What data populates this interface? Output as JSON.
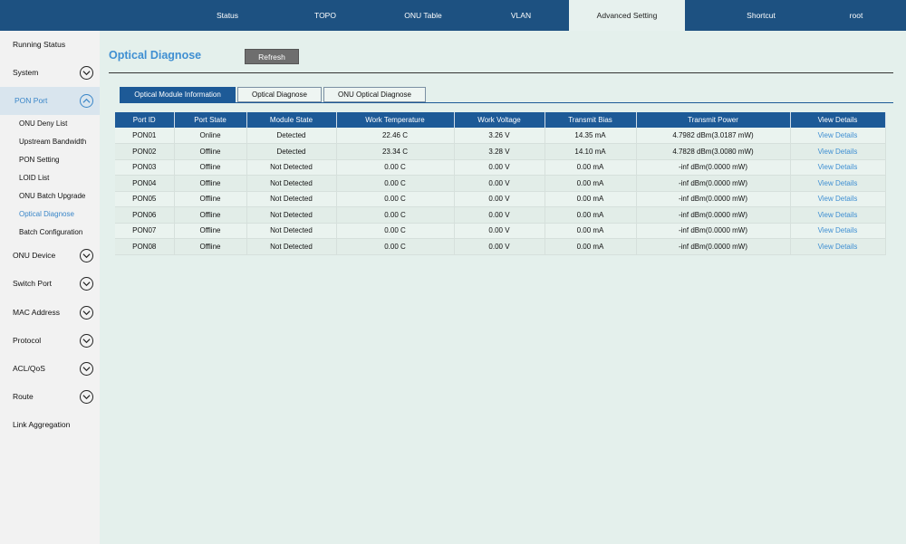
{
  "topnav": [
    {
      "label": "Status",
      "active": false
    },
    {
      "label": "TOPO",
      "active": false
    },
    {
      "label": "ONU Table",
      "active": false
    },
    {
      "label": "VLAN",
      "active": false
    },
    {
      "label": "Advanced Setting",
      "active": true
    },
    {
      "label": "Shortcut",
      "active": false
    },
    {
      "label": "root",
      "active": false
    }
  ],
  "sidebar": {
    "items": [
      {
        "label": "Running Status",
        "expandable": false
      },
      {
        "label": "System",
        "expandable": true
      },
      {
        "label": "PON Port",
        "expandable": true,
        "expanded": true
      },
      {
        "label": "ONU Device",
        "expandable": true
      },
      {
        "label": "Switch Port",
        "expandable": true
      },
      {
        "label": "MAC Address",
        "expandable": true
      },
      {
        "label": "Protocol",
        "expandable": true
      },
      {
        "label": "ACL/QoS",
        "expandable": true
      },
      {
        "label": "Route",
        "expandable": true
      },
      {
        "label": "Link Aggregation",
        "expandable": false
      }
    ],
    "pon_subitems": [
      "ONU Deny List",
      "Upstream Bandwidth",
      "PON Setting",
      "LOID List",
      "ONU Batch Upgrade",
      "Optical Diagnose",
      "Batch Configuration"
    ],
    "active_subitem": "Optical Diagnose"
  },
  "main": {
    "title": "Optical Diagnose",
    "refresh_label": "Refresh",
    "tabs": [
      {
        "label": "Optical Module Information",
        "active": true
      },
      {
        "label": "Optical Diagnose",
        "active": false
      },
      {
        "label": "ONU Optical Diagnose",
        "active": false
      }
    ],
    "table": {
      "headers": [
        "Port ID",
        "Port State",
        "Module State",
        "Work Temperature",
        "Work Voltage",
        "Transmit Bias",
        "Transmit Power",
        "View Details"
      ],
      "rows": [
        [
          "PON01",
          "Online",
          "Detected",
          "22.46 C",
          "3.26 V",
          "14.35 mA",
          "4.7982 dBm(3.0187 mW)",
          "View Details"
        ],
        [
          "PON02",
          "Offline",
          "Detected",
          "23.34 C",
          "3.28 V",
          "14.10 mA",
          "4.7828 dBm(3.0080 mW)",
          "View Details"
        ],
        [
          "PON03",
          "Offline",
          "Not Detected",
          "0.00 C",
          "0.00 V",
          "0.00 mA",
          "-inf dBm(0.0000 mW)",
          "View Details"
        ],
        [
          "PON04",
          "Offline",
          "Not Detected",
          "0.00 C",
          "0.00 V",
          "0.00 mA",
          "-inf dBm(0.0000 mW)",
          "View Details"
        ],
        [
          "PON05",
          "Offline",
          "Not Detected",
          "0.00 C",
          "0.00 V",
          "0.00 mA",
          "-inf dBm(0.0000 mW)",
          "View Details"
        ],
        [
          "PON06",
          "Offline",
          "Not Detected",
          "0.00 C",
          "0.00 V",
          "0.00 mA",
          "-inf dBm(0.0000 mW)",
          "View Details"
        ],
        [
          "PON07",
          "Offline",
          "Not Detected",
          "0.00 C",
          "0.00 V",
          "0.00 mA",
          "-inf dBm(0.0000 mW)",
          "View Details"
        ],
        [
          "PON08",
          "Offline",
          "Not Detected",
          "0.00 C",
          "0.00 V",
          "0.00 mA",
          "-inf dBm(0.0000 mW)",
          "View Details"
        ]
      ]
    }
  },
  "colors": {
    "nav_bg": "#1d5181",
    "accent": "#3f8fd2",
    "table_header": "#1d5a97",
    "page_bg": "#e4f0ec"
  }
}
